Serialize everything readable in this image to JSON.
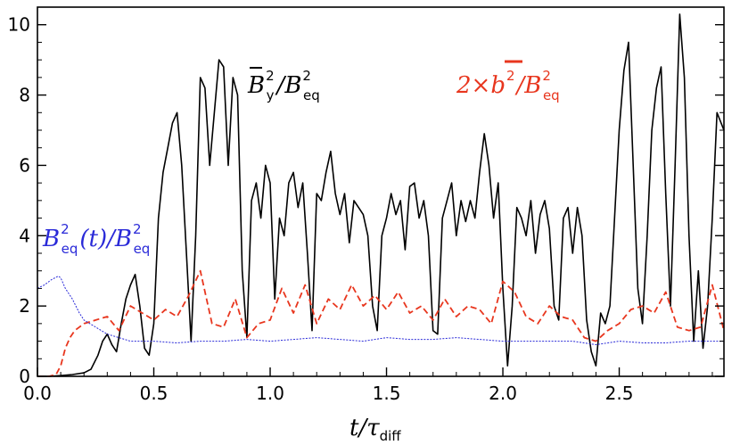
{
  "chart_data": {
    "type": "line",
    "xlim": [
      0.0,
      2.95
    ],
    "ylim": [
      0,
      10.5
    ],
    "x_ticks": [
      0.0,
      0.5,
      1.0,
      1.5,
      2.0,
      2.5
    ],
    "x_tick_labels": [
      "0.0",
      "0.5",
      "1.0",
      "1.5",
      "2.0",
      "2.5"
    ],
    "y_ticks": [
      0,
      2,
      4,
      6,
      8,
      10
    ],
    "y_tick_labels": [
      "0",
      "2",
      "4",
      "6",
      "8",
      "10"
    ],
    "xlabel": "t/τdiff",
    "ylabel": "",
    "grid": false,
    "colors": {
      "mean": "#000000",
      "fluct": "#e8361e",
      "eq": "#2a2ad8"
    },
    "annotations": {
      "mean": {
        "base": "B",
        "sup": "2",
        "sub": "y",
        "slash": "/",
        "base2": "B",
        "sup2": "2",
        "sub2": "eq"
      },
      "fluct": {
        "prefix": "2×",
        "base": "b",
        "sup": "2",
        "slash": "/",
        "base2": "B",
        "sup2": "2",
        "sub2": "eq"
      },
      "eq": {
        "base": "B",
        "sup": "2",
        "sub": "eq",
        "mid": "(t)/",
        "base2": "B",
        "sup2": "2",
        "sub2": "eq"
      }
    },
    "series": [
      {
        "key": "mean",
        "x": [
          0.0,
          0.05,
          0.1,
          0.15,
          0.2,
          0.23,
          0.26,
          0.28,
          0.3,
          0.32,
          0.34,
          0.36,
          0.38,
          0.4,
          0.42,
          0.44,
          0.46,
          0.48,
          0.5,
          0.52,
          0.54,
          0.56,
          0.58,
          0.6,
          0.62,
          0.64,
          0.66,
          0.68,
          0.7,
          0.72,
          0.74,
          0.76,
          0.78,
          0.8,
          0.82,
          0.84,
          0.86,
          0.88,
          0.9,
          0.92,
          0.94,
          0.96,
          0.98,
          1.0,
          1.02,
          1.04,
          1.06,
          1.08,
          1.1,
          1.12,
          1.14,
          1.16,
          1.18,
          1.2,
          1.22,
          1.24,
          1.26,
          1.28,
          1.3,
          1.32,
          1.34,
          1.36,
          1.38,
          1.4,
          1.42,
          1.44,
          1.46,
          1.48,
          1.5,
          1.52,
          1.54,
          1.56,
          1.58,
          1.6,
          1.62,
          1.64,
          1.66,
          1.68,
          1.7,
          1.72,
          1.74,
          1.76,
          1.78,
          1.8,
          1.82,
          1.84,
          1.86,
          1.88,
          1.9,
          1.92,
          1.94,
          1.96,
          1.98,
          2.0,
          2.02,
          2.04,
          2.06,
          2.08,
          2.1,
          2.12,
          2.14,
          2.16,
          2.18,
          2.2,
          2.22,
          2.24,
          2.26,
          2.28,
          2.3,
          2.32,
          2.34,
          2.36,
          2.38,
          2.4,
          2.42,
          2.44,
          2.46,
          2.48,
          2.5,
          2.52,
          2.54,
          2.56,
          2.58,
          2.6,
          2.62,
          2.64,
          2.66,
          2.68,
          2.7,
          2.72,
          2.74,
          2.76,
          2.78,
          2.8,
          2.82,
          2.84,
          2.86,
          2.88,
          2.9,
          2.92,
          2.95
        ],
        "y": [
          0.0,
          0.0,
          0.02,
          0.05,
          0.1,
          0.2,
          0.6,
          1.0,
          1.2,
          0.9,
          0.7,
          1.5,
          2.2,
          2.6,
          2.9,
          2.0,
          0.8,
          0.6,
          1.5,
          4.5,
          5.8,
          6.5,
          7.2,
          7.5,
          6.0,
          3.5,
          1.0,
          4.0,
          8.5,
          8.2,
          6.0,
          7.5,
          9.0,
          8.8,
          6.0,
          8.5,
          8.0,
          3.0,
          1.1,
          5.0,
          5.5,
          4.5,
          6.0,
          5.5,
          2.2,
          4.5,
          4.0,
          5.5,
          5.8,
          4.8,
          5.5,
          3.5,
          1.3,
          5.2,
          5.0,
          5.8,
          6.4,
          5.2,
          4.6,
          5.2,
          3.8,
          5.0,
          4.8,
          4.6,
          4.0,
          2.0,
          1.3,
          4.0,
          4.5,
          5.2,
          4.6,
          5.0,
          3.6,
          5.4,
          5.5,
          4.5,
          5.0,
          4.0,
          1.3,
          1.2,
          4.5,
          5.0,
          5.5,
          4.0,
          5.0,
          4.4,
          5.0,
          4.5,
          5.8,
          6.9,
          6.0,
          4.5,
          5.5,
          2.5,
          0.3,
          2.0,
          4.8,
          4.5,
          4.0,
          5.0,
          3.5,
          4.6,
          5.0,
          4.2,
          2.0,
          1.6,
          4.5,
          4.8,
          3.5,
          4.8,
          4.0,
          1.6,
          0.7,
          0.3,
          1.8,
          1.5,
          2.0,
          4.5,
          7.0,
          8.7,
          9.5,
          6.0,
          2.5,
          1.5,
          4.0,
          7.0,
          8.2,
          8.8,
          5.2,
          2.0,
          6.0,
          10.3,
          8.5,
          4.0,
          1.0,
          3.0,
          0.8,
          2.0,
          4.5,
          7.5,
          7.0
        ]
      },
      {
        "key": "fluct",
        "x": [
          0.0,
          0.05,
          0.08,
          0.1,
          0.12,
          0.14,
          0.16,
          0.18,
          0.2,
          0.25,
          0.3,
          0.35,
          0.4,
          0.45,
          0.5,
          0.55,
          0.6,
          0.65,
          0.7,
          0.75,
          0.8,
          0.85,
          0.9,
          0.95,
          1.0,
          1.05,
          1.1,
          1.15,
          1.2,
          1.25,
          1.3,
          1.35,
          1.4,
          1.45,
          1.5,
          1.55,
          1.6,
          1.65,
          1.7,
          1.75,
          1.8,
          1.85,
          1.9,
          1.95,
          2.0,
          2.05,
          2.1,
          2.15,
          2.2,
          2.25,
          2.3,
          2.35,
          2.4,
          2.45,
          2.5,
          2.55,
          2.6,
          2.65,
          2.7,
          2.75,
          2.8,
          2.85,
          2.9,
          2.95
        ],
        "y": [
          0.0,
          0.0,
          0.05,
          0.3,
          0.8,
          1.1,
          1.3,
          1.4,
          1.5,
          1.6,
          1.7,
          1.3,
          2.0,
          1.8,
          1.6,
          1.9,
          1.7,
          2.3,
          3.0,
          1.5,
          1.4,
          2.2,
          1.1,
          1.5,
          1.6,
          2.5,
          1.8,
          2.6,
          1.5,
          2.2,
          1.9,
          2.6,
          2.0,
          2.3,
          1.9,
          2.4,
          1.8,
          2.0,
          1.6,
          2.2,
          1.7,
          2.0,
          1.9,
          1.5,
          2.7,
          2.4,
          1.7,
          1.5,
          2.0,
          1.7,
          1.6,
          1.1,
          1.0,
          1.3,
          1.5,
          1.9,
          2.0,
          1.8,
          2.4,
          1.4,
          1.3,
          1.4,
          2.6,
          1.3
        ]
      },
      {
        "key": "eq",
        "x": [
          0.0,
          0.03,
          0.06,
          0.09,
          0.1,
          0.12,
          0.15,
          0.18,
          0.2,
          0.25,
          0.3,
          0.35,
          0.4,
          0.5,
          0.6,
          0.7,
          0.8,
          0.9,
          1.0,
          1.1,
          1.2,
          1.3,
          1.4,
          1.5,
          1.6,
          1.7,
          1.8,
          1.9,
          2.0,
          2.1,
          2.2,
          2.3,
          2.4,
          2.5,
          2.6,
          2.7,
          2.8,
          2.9,
          2.95
        ],
        "y": [
          2.5,
          2.6,
          2.75,
          2.85,
          2.8,
          2.5,
          2.2,
          1.8,
          1.6,
          1.4,
          1.2,
          1.1,
          1.0,
          1.0,
          0.95,
          1.0,
          1.0,
          1.05,
          1.0,
          1.05,
          1.1,
          1.05,
          1.0,
          1.1,
          1.05,
          1.05,
          1.1,
          1.05,
          1.0,
          1.0,
          1.0,
          1.0,
          0.9,
          1.0,
          0.95,
          0.95,
          1.0,
          1.0,
          1.0
        ]
      }
    ]
  }
}
